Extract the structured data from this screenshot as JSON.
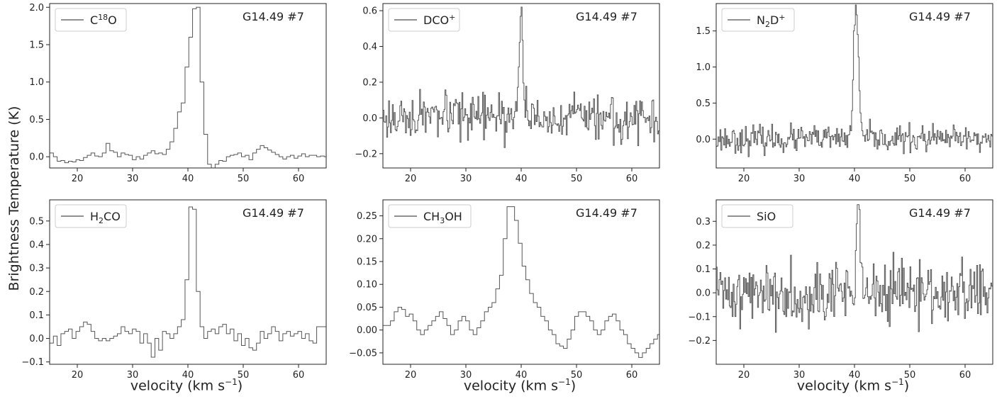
{
  "figure": {
    "ylabel": "Brightness Temperature (K)",
    "xlabel_main": "velocity (km s",
    "xlabel_sup": "−1",
    "xlabel_close": ")"
  },
  "chart_data": [
    {
      "type": "line",
      "panel": "C18O",
      "legend": {
        "label_parts": [
          {
            "t": "C"
          },
          {
            "t": "18",
            "sup": true
          },
          {
            "t": "O"
          }
        ],
        "placement": "top-left"
      },
      "source_label": "G14.49  #7",
      "xlabel": "",
      "ylabel": "",
      "xlim": [
        15,
        65
      ],
      "ylim": [
        -0.15,
        2.05
      ],
      "xticks": [
        20,
        30,
        40,
        50,
        60
      ],
      "yticks": [
        0.0,
        0.5,
        1.0,
        1.5,
        2.0
      ],
      "ytick_labels": [
        "0.0",
        "0.5",
        "1.0",
        "1.5",
        "2.0"
      ],
      "x_start": 15,
      "dx": 0.68,
      "values": [
        0.05,
        0.0,
        -0.06,
        -0.05,
        -0.08,
        -0.06,
        -0.07,
        -0.04,
        -0.05,
        -0.01,
        0.02,
        0.05,
        0.01,
        0.0,
        0.05,
        0.18,
        0.08,
        0.06,
        0.0,
        0.05,
        0.03,
        0.02,
        -0.04,
        0.0,
        -0.03,
        0.02,
        0.05,
        0.08,
        0.04,
        0.05,
        0.03,
        0.1,
        0.2,
        0.38,
        0.6,
        0.72,
        1.2,
        1.6,
        1.98,
        2.0,
        1.0,
        0.3,
        -0.1,
        -0.15,
        -0.1,
        -0.05,
        -0.06,
        0.0,
        0.02,
        0.03,
        0.05,
        0.0,
        0.02,
        -0.04,
        0.05,
        0.1,
        0.15,
        0.12,
        0.09,
        0.06,
        0.03,
        0.0,
        -0.03,
        0.0,
        0.02,
        -0.02,
        0.01,
        0.04,
        0.0,
        0.02,
        0.02,
        0.0,
        0.01,
        0.0
      ]
    },
    {
      "type": "line",
      "panel": "DCO+",
      "legend": {
        "label_parts": [
          {
            "t": "DCO"
          },
          {
            "t": "+",
            "sup": true
          }
        ],
        "placement": "top-left"
      },
      "source_label": "G14.49  #7",
      "xlabel": "",
      "ylabel": "",
      "xlim": [
        15,
        65
      ],
      "ylim": [
        -0.28,
        0.64
      ],
      "xticks": [
        20,
        30,
        40,
        50,
        60
      ],
      "yticks": [
        -0.2,
        0.0,
        0.2,
        0.4,
        0.6
      ],
      "ytick_labels": [
        "−0.2",
        "0.0",
        "0.2",
        "0.4",
        "0.6"
      ],
      "x_start": 15,
      "dx": 0.17,
      "peak": {
        "x": 39.9,
        "y": 0.6,
        "width": 0.35
      },
      "noise": {
        "rms": 0.06,
        "seed": 17
      }
    },
    {
      "type": "line",
      "panel": "N2D+",
      "legend": {
        "label_parts": [
          {
            "t": "N"
          },
          {
            "t": "2",
            "sub": true
          },
          {
            "t": "D"
          },
          {
            "t": "+",
            "sup": true
          }
        ],
        "placement": "top-left"
      },
      "source_label": "G14.49  #7",
      "xlabel": "",
      "ylabel": "",
      "xlim": [
        15,
        65
      ],
      "ylim": [
        -0.4,
        1.88
      ],
      "xticks": [
        20,
        30,
        40,
        50,
        60
      ],
      "yticks": [
        0.0,
        0.5,
        1.0,
        1.5
      ],
      "ytick_labels": [
        "0.0",
        "0.5",
        "1.0",
        "1.5"
      ],
      "x_start": 15,
      "dx": 0.17,
      "peak": {
        "x": 40.2,
        "y": 1.82,
        "width": 0.45
      },
      "noise": {
        "rms": 0.09,
        "seed": 23
      }
    },
    {
      "type": "line",
      "panel": "H2CO",
      "legend": {
        "label_parts": [
          {
            "t": "H"
          },
          {
            "t": "2",
            "sub": true
          },
          {
            "t": "CO"
          }
        ],
        "placement": "top-left"
      },
      "source_label": "G14.49  #7",
      "xlabel": "",
      "ylabel": "",
      "xlim": [
        15,
        65
      ],
      "ylim": [
        -0.11,
        0.59
      ],
      "xticks": [
        20,
        30,
        40,
        50,
        60
      ],
      "yticks": [
        -0.1,
        0.0,
        0.1,
        0.2,
        0.3,
        0.4,
        0.5
      ],
      "ytick_labels": [
        "−0.1",
        "0.0",
        "0.1",
        "0.2",
        "0.3",
        "0.4",
        "0.5"
      ],
      "x_start": 15,
      "dx": 0.68,
      "values": [
        -0.02,
        0.01,
        -0.03,
        0.02,
        0.03,
        0.04,
        0.0,
        0.03,
        0.05,
        0.07,
        0.06,
        0.03,
        0.0,
        -0.01,
        0.0,
        -0.01,
        0.0,
        0.01,
        0.02,
        0.05,
        0.03,
        0.02,
        0.04,
        0.03,
        -0.02,
        0.02,
        -0.02,
        -0.08,
        0.0,
        -0.05,
        0.03,
        0.02,
        0.0,
        0.02,
        0.05,
        0.08,
        0.25,
        0.56,
        0.55,
        0.2,
        0.05,
        0.0,
        0.03,
        0.04,
        0.02,
        0.05,
        0.06,
        0.02,
        0.04,
        -0.01,
        0.02,
        -0.03,
        0.0,
        -0.04,
        -0.05,
        -0.02,
        0.03,
        0.0,
        0.02,
        0.05,
        0.03,
        -0.01,
        0.02,
        0.03,
        0.01,
        0.02,
        0.03,
        0.0,
        0.02,
        -0.01,
        -0.02,
        0.05,
        0.05,
        0.05
      ]
    },
    {
      "type": "line",
      "panel": "CH3OH",
      "legend": {
        "label_parts": [
          {
            "t": "CH"
          },
          {
            "t": "3",
            "sub": true
          },
          {
            "t": "OH"
          }
        ],
        "placement": "top-left"
      },
      "source_label": "G14.49  #7",
      "xlabel": "",
      "ylabel": "",
      "xlim": [
        15,
        65
      ],
      "ylim": [
        -0.075,
        0.285
      ],
      "xticks": [
        20,
        30,
        40,
        50,
        60
      ],
      "yticks": [
        -0.05,
        0.0,
        0.05,
        0.1,
        0.15,
        0.2,
        0.25
      ],
      "ytick_labels": [
        "−0.05",
        "0.00",
        "0.05",
        "0.10",
        "0.15",
        "0.20",
        "0.25"
      ],
      "x_start": 15,
      "dx": 0.68,
      "values": [
        0.01,
        0.01,
        0.02,
        0.04,
        0.05,
        0.045,
        0.03,
        0.035,
        0.02,
        0.0,
        -0.01,
        0.0,
        0.01,
        0.02,
        0.03,
        0.04,
        0.025,
        0.01,
        -0.01,
        0.0,
        0.02,
        0.03,
        0.02,
        0.0,
        -0.01,
        0.005,
        0.02,
        0.04,
        0.05,
        0.06,
        0.09,
        0.12,
        0.2,
        0.27,
        0.27,
        0.24,
        0.19,
        0.14,
        0.11,
        0.08,
        0.06,
        0.05,
        0.03,
        0.02,
        0.0,
        -0.01,
        -0.03,
        -0.035,
        -0.04,
        -0.02,
        0.0,
        0.03,
        0.04,
        0.04,
        0.03,
        0.02,
        0.0,
        -0.01,
        0.0,
        0.02,
        0.03,
        0.035,
        0.02,
        0.0,
        -0.01,
        -0.03,
        -0.04,
        -0.05,
        -0.06,
        -0.05,
        -0.04,
        -0.03,
        -0.02,
        -0.01
      ]
    },
    {
      "type": "line",
      "panel": "SiO",
      "legend": {
        "label_parts": [
          {
            "t": "SiO"
          }
        ],
        "placement": "top-left"
      },
      "source_label": "G14.49  #7",
      "xlabel": "",
      "ylabel": "",
      "xlim": [
        15,
        65
      ],
      "ylim": [
        -0.3,
        0.39
      ],
      "xticks": [
        20,
        30,
        40,
        50,
        60
      ],
      "yticks": [
        -0.2,
        -0.1,
        0.0,
        0.1,
        0.2,
        0.3
      ],
      "ytick_labels": [
        "−0.2",
        "−0.1",
        "0.0",
        "0.1",
        "0.2",
        "0.3"
      ],
      "x_start": 15,
      "dx": 0.17,
      "peak": {
        "x": 40.6,
        "y": 0.36,
        "width": 0.4
      },
      "noise": {
        "rms": 0.065,
        "seed": 41
      }
    }
  ],
  "colors": {
    "line": "#555555",
    "frame": "#222222",
    "text": "#222222",
    "legend_border": "#cccccc"
  }
}
